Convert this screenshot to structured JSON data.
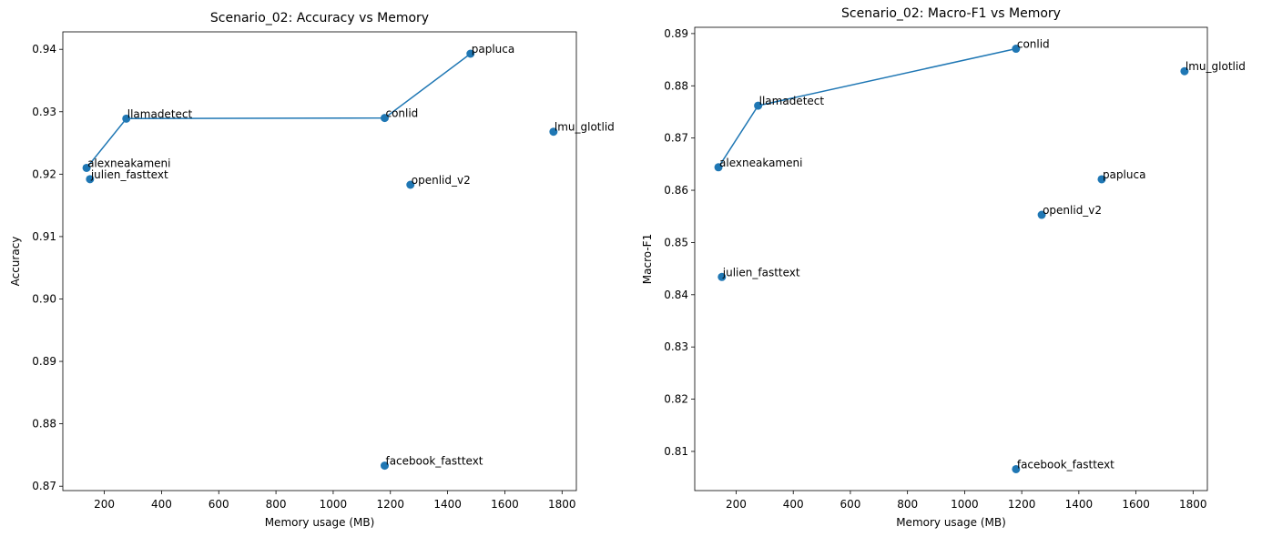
{
  "chart_data": [
    {
      "type": "scatter",
      "title": "Scenario_02: Accuracy vs Memory",
      "xlabel": "Memory usage (MB)",
      "ylabel": "Accuracy",
      "xlim": [
        55,
        1850
      ],
      "ylim": [
        0.8693,
        0.9428
      ],
      "xticks": [
        200,
        400,
        600,
        800,
        1000,
        1200,
        1400,
        1600,
        1800
      ],
      "yticks": [
        0.87,
        0.88,
        0.89,
        0.9,
        0.91,
        0.92,
        0.93,
        0.94
      ],
      "ytick_labels": [
        "0.87",
        "0.88",
        "0.89",
        "0.90",
        "0.91",
        "0.92",
        "0.93",
        "0.94"
      ],
      "grid": false,
      "color": "#1f77b4",
      "points": [
        {
          "name": "alexneakameni",
          "x": 138,
          "y": 0.921
        },
        {
          "name": "julien_fasttext",
          "x": 150,
          "y": 0.9192
        },
        {
          "name": "llamadetect",
          "x": 277,
          "y": 0.9289
        },
        {
          "name": "conlid",
          "x": 1180,
          "y": 0.929
        },
        {
          "name": "papluca",
          "x": 1480,
          "y": 0.9393
        },
        {
          "name": "lmu_glotlid",
          "x": 1770,
          "y": 0.9268
        },
        {
          "name": "openlid_v2",
          "x": 1270,
          "y": 0.9183
        },
        {
          "name": "facebook_fasttext",
          "x": 1180,
          "y": 0.8733
        }
      ],
      "frontier": [
        "alexneakameni",
        "llamadetect",
        "conlid",
        "papluca"
      ]
    },
    {
      "type": "scatter",
      "title": "Scenario_02: Macro-F1 vs Memory",
      "xlabel": "Memory usage (MB)",
      "ylabel": "Macro-F1",
      "xlim": [
        55,
        1850
      ],
      "ylim": [
        0.8025,
        0.8912
      ],
      "xticks": [
        200,
        400,
        600,
        800,
        1000,
        1200,
        1400,
        1600,
        1800
      ],
      "yticks": [
        0.81,
        0.82,
        0.83,
        0.84,
        0.85,
        0.86,
        0.87,
        0.88,
        0.89
      ],
      "ytick_labels": [
        "0.81",
        "0.82",
        "0.83",
        "0.84",
        "0.85",
        "0.86",
        "0.87",
        "0.88",
        "0.89"
      ],
      "grid": false,
      "color": "#1f77b4",
      "points": [
        {
          "name": "alexneakameni",
          "x": 138,
          "y": 0.8644
        },
        {
          "name": "julien_fasttext",
          "x": 150,
          "y": 0.8434
        },
        {
          "name": "llamadetect",
          "x": 277,
          "y": 0.8762
        },
        {
          "name": "conlid",
          "x": 1180,
          "y": 0.8871
        },
        {
          "name": "lmu_glotlid",
          "x": 1770,
          "y": 0.8828
        },
        {
          "name": "papluca",
          "x": 1480,
          "y": 0.8621
        },
        {
          "name": "openlid_v2",
          "x": 1270,
          "y": 0.8553
        },
        {
          "name": "facebook_fasttext",
          "x": 1180,
          "y": 0.8066
        }
      ],
      "frontier": [
        "alexneakameni",
        "llamadetect",
        "conlid"
      ]
    }
  ]
}
